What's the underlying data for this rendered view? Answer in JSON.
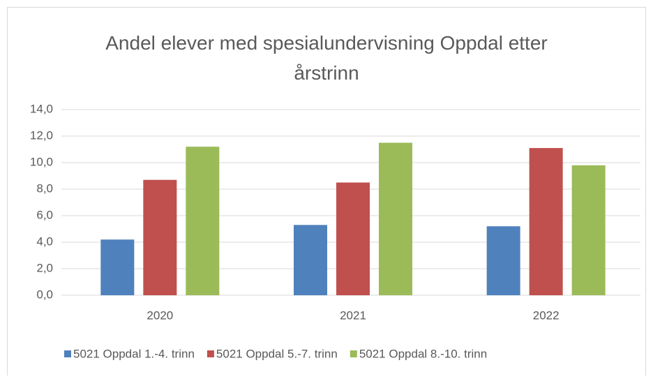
{
  "chart_data": {
    "type": "bar",
    "title": "Andel elever med spesialundervisning Oppdal etter årstrinn",
    "categories": [
      "2020",
      "2021",
      "2022"
    ],
    "series": [
      {
        "name": "5021 Oppdal 1.-4. trinn",
        "color": "#4f81bd",
        "values": [
          4.2,
          5.3,
          5.2
        ]
      },
      {
        "name": "5021 Oppdal 5.-7. trinn",
        "color": "#c0504d",
        "values": [
          8.7,
          8.5,
          11.1
        ]
      },
      {
        "name": "5021 Oppdal 8.-10. trinn",
        "color": "#9bbb59",
        "values": [
          11.2,
          11.5,
          9.8
        ]
      }
    ],
    "ylim": [
      0,
      14
    ],
    "yticks": [
      {
        "value": 0,
        "label": "0,0"
      },
      {
        "value": 2,
        "label": "2,0"
      },
      {
        "value": 4,
        "label": "4,0"
      },
      {
        "value": 6,
        "label": "6,0"
      },
      {
        "value": 8,
        "label": "8,0"
      },
      {
        "value": 10,
        "label": "10,0"
      },
      {
        "value": 12,
        "label": "12,0"
      },
      {
        "value": 14,
        "label": "14,0"
      }
    ],
    "grid": true,
    "legend": "bottom"
  }
}
